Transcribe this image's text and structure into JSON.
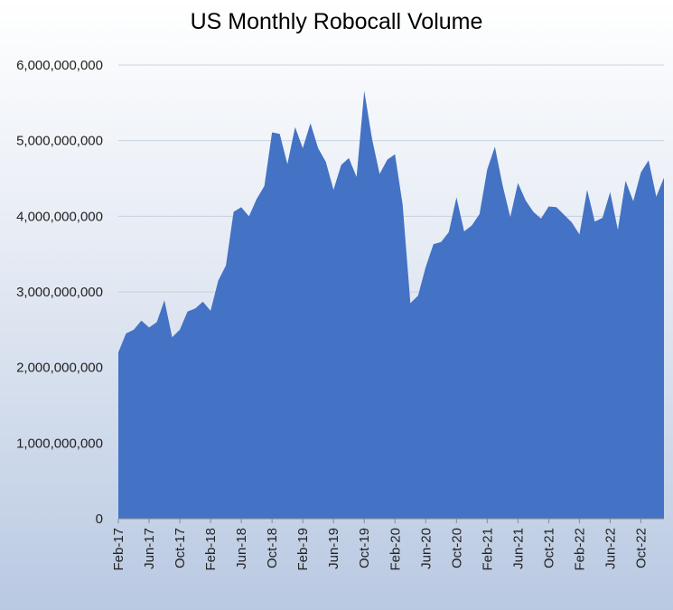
{
  "chart_data": {
    "type": "area",
    "title": "US Monthly Robocall Volume",
    "xlabel": "",
    "ylabel": "",
    "ylim": [
      0,
      6000000000
    ],
    "yticks": [
      0,
      1000000000,
      2000000000,
      3000000000,
      4000000000,
      5000000000,
      6000000000
    ],
    "ytick_labels": [
      "0",
      "1,000,000,000",
      "2,000,000,000",
      "3,000,000,000",
      "4,000,000,000",
      "5,000,000,000",
      "6,000,000,000"
    ],
    "grid": true,
    "color": "#4472c4",
    "x": [
      "Feb-17",
      "Mar-17",
      "Apr-17",
      "May-17",
      "Jun-17",
      "Jul-17",
      "Aug-17",
      "Sep-17",
      "Oct-17",
      "Nov-17",
      "Dec-17",
      "Jan-18",
      "Feb-18",
      "Mar-18",
      "Apr-18",
      "May-18",
      "Jun-18",
      "Jul-18",
      "Aug-18",
      "Sep-18",
      "Oct-18",
      "Nov-18",
      "Dec-18",
      "Jan-19",
      "Feb-19",
      "Mar-19",
      "Apr-19",
      "May-19",
      "Jun-19",
      "Jul-19",
      "Aug-19",
      "Sep-19",
      "Oct-19",
      "Nov-19",
      "Dec-19",
      "Jan-20",
      "Feb-20",
      "Mar-20",
      "Apr-20",
      "May-20",
      "Jun-20",
      "Jul-20",
      "Aug-20",
      "Sep-20",
      "Oct-20",
      "Nov-20",
      "Dec-20",
      "Jan-21",
      "Feb-21",
      "Mar-21",
      "Apr-21",
      "May-21",
      "Jun-21",
      "Jul-21",
      "Aug-21",
      "Sep-21",
      "Oct-21",
      "Nov-21",
      "Dec-21",
      "Jan-22",
      "Feb-22",
      "Mar-22",
      "Apr-22",
      "May-22",
      "Jun-22",
      "Jul-22",
      "Aug-22",
      "Sep-22",
      "Oct-22",
      "Nov-22",
      "Dec-22",
      "Jan-23"
    ],
    "x_tick_labels": [
      "Feb-17",
      "Jun-17",
      "Oct-17",
      "Feb-18",
      "Jun-18",
      "Oct-18",
      "Feb-19",
      "Jun-19",
      "Oct-19",
      "Feb-20",
      "Jun-20",
      "Oct-20",
      "Feb-21",
      "Jun-21",
      "Oct-21",
      "Feb-22",
      "Jun-22",
      "Oct-22"
    ],
    "series": [
      {
        "values": [
          2200000000,
          2450000000,
          2500000000,
          2620000000,
          2530000000,
          2600000000,
          2890000000,
          2400000000,
          2500000000,
          2740000000,
          2780000000,
          2870000000,
          2750000000,
          3150000000,
          3350000000,
          4060000000,
          4120000000,
          4000000000,
          4230000000,
          4400000000,
          5110000000,
          5090000000,
          4690000000,
          5180000000,
          4900000000,
          5230000000,
          4900000000,
          4720000000,
          4350000000,
          4680000000,
          4770000000,
          4520000000,
          5660000000,
          5030000000,
          4560000000,
          4750000000,
          4820000000,
          4150000000,
          2850000000,
          2950000000,
          3330000000,
          3630000000,
          3660000000,
          3790000000,
          4250000000,
          3800000000,
          3880000000,
          4030000000,
          4620000000,
          4920000000,
          4410000000,
          3990000000,
          4440000000,
          4210000000,
          4060000000,
          3970000000,
          4130000000,
          4120000000,
          4020000000,
          3920000000,
          3760000000,
          4350000000,
          3930000000,
          3980000000,
          4320000000,
          3820000000,
          4470000000,
          4200000000,
          4580000000,
          4740000000,
          4260000000,
          4510000000
        ]
      }
    ]
  }
}
